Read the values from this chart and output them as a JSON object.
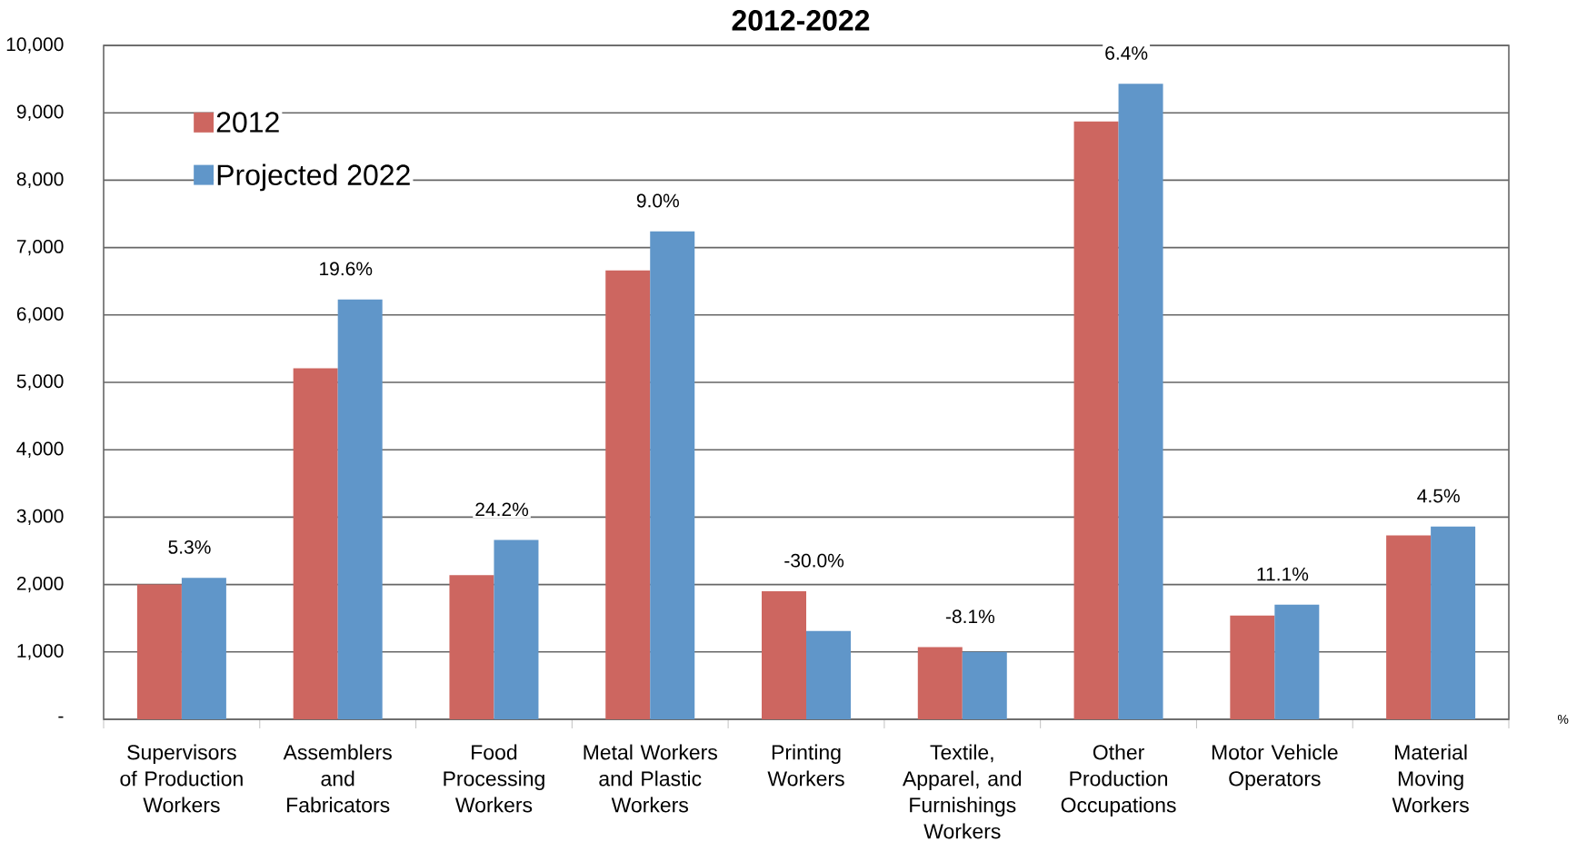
{
  "chart_data": {
    "type": "bar",
    "title": "2012-2022",
    "categories": [
      "Supervisors of Production Workers",
      "Assemblers and Fabricators",
      "Food Processing Workers",
      "Metal Workers and Plastic Workers",
      "Printing Workers",
      "Textile, Apparel, and Furnishings Workers",
      "Other Production Occupations",
      "Motor Vehicle Operators",
      "Material Moving Workers"
    ],
    "series": [
      {
        "name": "2012",
        "color": "#cd6660",
        "values": [
          2000,
          5210,
          2140,
          6660,
          1900,
          1070,
          8870,
          1540,
          2730
        ]
      },
      {
        "name": "Projected 2022",
        "color": "#6096c9",
        "values": [
          2100,
          6230,
          2660,
          7240,
          1310,
          1000,
          9430,
          1700,
          2860
        ]
      }
    ],
    "ylim": [
      0,
      10000
    ],
    "yticks": [
      {
        "value": 0,
        "label": "-"
      },
      {
        "value": 1000,
        "label": "1,000"
      },
      {
        "value": 2000,
        "label": "2,000"
      },
      {
        "value": 3000,
        "label": "3,000"
      },
      {
        "value": 4000,
        "label": "4,000"
      },
      {
        "value": 5000,
        "label": "5,000"
      },
      {
        "value": 6000,
        "label": "6,000"
      },
      {
        "value": 7000,
        "label": "7,000"
      },
      {
        "value": 8000,
        "label": "8,000"
      },
      {
        "value": 9000,
        "label": "9,000"
      },
      {
        "value": 10000,
        "label": "10,000"
      }
    ],
    "grid": "y",
    "legend": "top left",
    "annotations": [
      {
        "text": "5.3%",
        "x": "Supervisors of Production Workers",
        "y": 2100
      },
      {
        "text": "19.6%",
        "x": "Assemblers and Fabricators",
        "y": 6230
      },
      {
        "text": "24.2%",
        "x": "Food Processing Workers",
        "y": 2660
      },
      {
        "text": "9.0%",
        "x": "Metal Workers and Plastic Workers",
        "y": 7240
      },
      {
        "text": "-30.0%",
        "x": "Printing Workers",
        "y": 1900
      },
      {
        "text": "-8.1%",
        "x": "Textile, Apparel, and Furnishings Workers",
        "y": 1070
      },
      {
        "text": "6.4%",
        "x": "Other Production Occupations",
        "y": 9430
      },
      {
        "text": "11.1%",
        "x": "Motor Vehicle Operators",
        "y": 1700
      },
      {
        "text": "4.5%",
        "x": "Material Moving Workers",
        "y": 2860
      },
      "%"
    ]
  }
}
